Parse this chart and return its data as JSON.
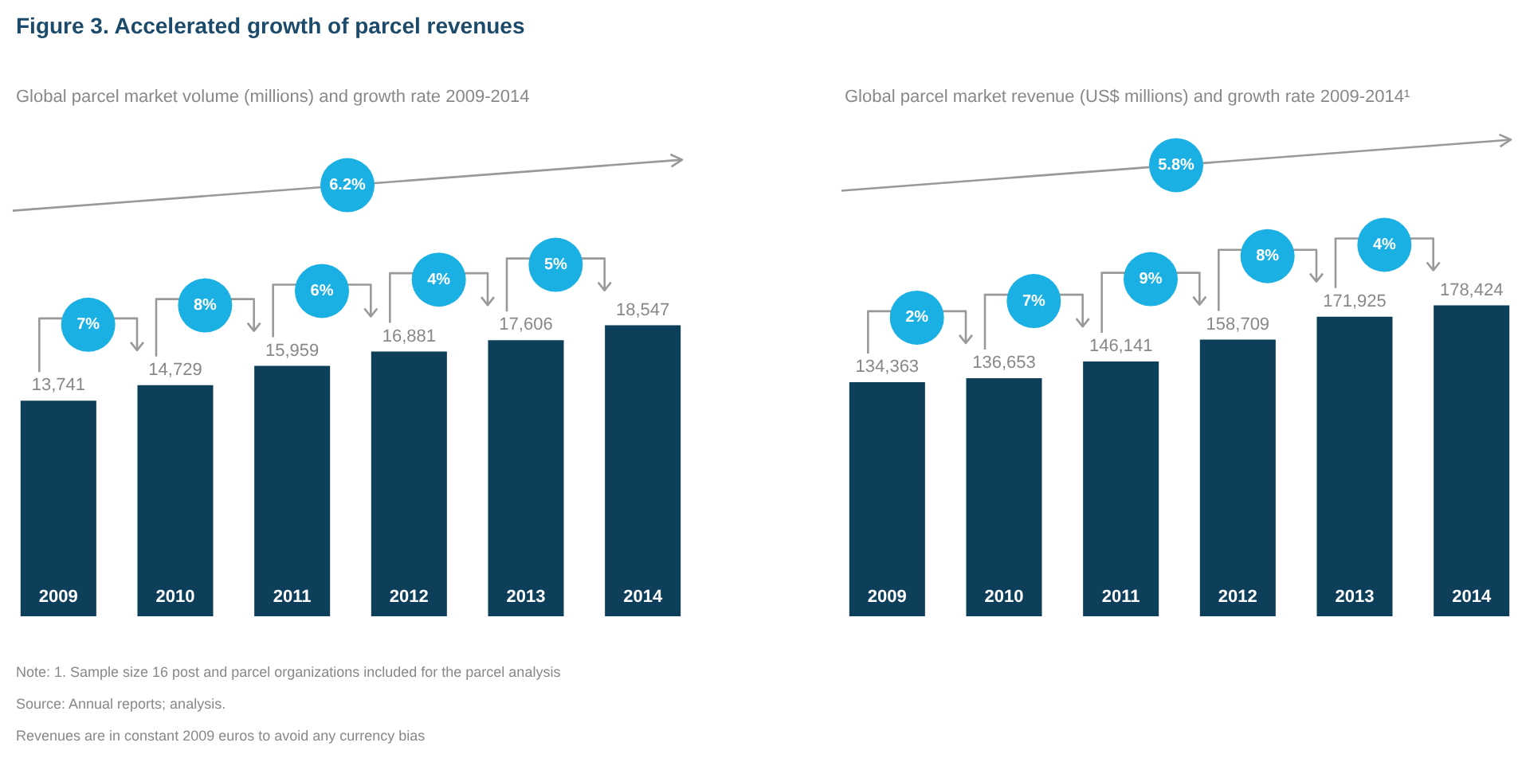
{
  "chart_data": [
    {
      "type": "bar",
      "title": "Figure 3. Accelerated growth of parcel revenues",
      "subtitle": "Global parcel market volume (millions) and growth rate 2009-2014",
      "categories": [
        "2009",
        "2010",
        "2011",
        "2012",
        "2013",
        "2014"
      ],
      "series": [
        {
          "color": "#0d3f5a",
          "values": [
            13741,
            14729,
            15959,
            16881,
            17606,
            18547
          ],
          "value_labels": [
            "13,741",
            "14,729",
            "15,959",
            "16,881",
            "17,606",
            "18,547"
          ]
        }
      ],
      "tick_labels": "x",
      "grid": false,
      "legend": false,
      "annotations": [
        "6.2%",
        "7%",
        "8%",
        "6%",
        "4%",
        "5%",
        "Note: 1. Sample size 16 post and parcel organizations included for the parcel analysis",
        "Source: Annual reports; analysis.",
        "Revenues are in constant 2009 euros to avoid any currency bias"
      ]
    },
    {
      "type": "bar",
      "subtitle": "Global parcel market revenue (US$ millions) and growth rate 2009-2014¹",
      "categories": [
        "2009",
        "2010",
        "2011",
        "2012",
        "2013",
        "2014"
      ],
      "series": [
        {
          "color": "#0d3f5a",
          "values": [
            134363,
            136653,
            146141,
            158709,
            171925,
            178424
          ],
          "value_labels": [
            "134,363",
            "136,653",
            "146,141",
            "158,709",
            "171,925",
            "178,424"
          ]
        }
      ],
      "tick_labels": "x",
      "grid": false,
      "legend": false,
      "annotations": [
        "5.8%",
        "2%",
        "7%",
        "9%",
        "8%",
        "4%"
      ]
    }
  ]
}
